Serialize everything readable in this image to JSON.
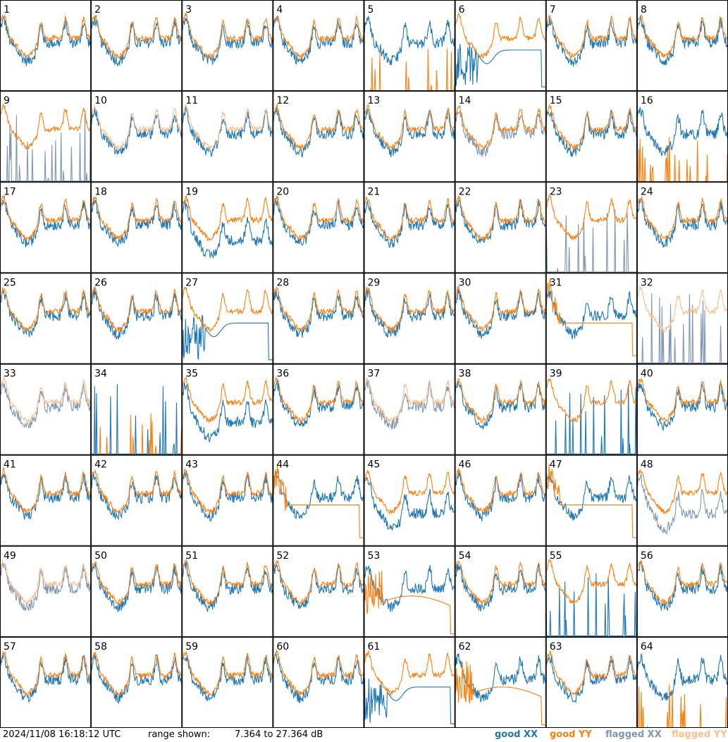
{
  "chart_data": {
    "type": "line",
    "grid": {
      "rows": 8,
      "cols": 8
    },
    "panels": [
      1,
      2,
      3,
      4,
      5,
      6,
      7,
      8,
      9,
      10,
      11,
      12,
      13,
      14,
      15,
      16,
      17,
      18,
      19,
      20,
      21,
      22,
      23,
      24,
      25,
      26,
      27,
      28,
      29,
      30,
      31,
      32,
      33,
      34,
      35,
      36,
      37,
      38,
      39,
      40,
      41,
      42,
      43,
      44,
      45,
      46,
      47,
      48,
      49,
      50,
      51,
      52,
      53,
      54,
      55,
      56,
      57,
      58,
      59,
      60,
      61,
      62,
      63,
      64
    ],
    "panel_labels": [
      "1",
      "2",
      "3",
      "4",
      "5",
      "6",
      "7",
      "8",
      "9",
      "10",
      "11",
      "12",
      "13",
      "14",
      "15",
      "16",
      "17",
      "18",
      "19",
      "20",
      "21",
      "22",
      "23",
      "24",
      "25",
      "26",
      "27",
      "28",
      "29",
      "30",
      "31",
      "32",
      "33",
      "34",
      "35",
      "36",
      "37",
      "38",
      "39",
      "40",
      "41",
      "42",
      "43",
      "44",
      "45",
      "46",
      "47",
      "48",
      "49",
      "50",
      "51",
      "52",
      "53",
      "54",
      "55",
      "56",
      "57",
      "58",
      "59",
      "60",
      "61",
      "62",
      "63",
      "64"
    ],
    "ylim": [
      7.364,
      27.364
    ],
    "y_unit": "dB",
    "series_styles": [
      {
        "name": "good XX",
        "color": "#1f77b4"
      },
      {
        "name": "good YY",
        "color": "#ff7f0e"
      },
      {
        "name": "flagged XX",
        "color": "#7f97b2"
      },
      {
        "name": "flagged YY",
        "color": "#fcbf8c"
      }
    ],
    "panel_traces": {
      "xx": [
        "good",
        "good",
        "good",
        "good",
        "good",
        "good",
        "good",
        "good",
        "flagged",
        "good",
        "good",
        "good",
        "good",
        "flagged",
        "good",
        "good",
        "good",
        "good",
        "good",
        "good",
        "good",
        "good",
        "flagged",
        "good",
        "good",
        "good",
        "good",
        "good",
        "good",
        "good",
        "good",
        "flagged",
        "flagged",
        "good",
        "good",
        "good",
        "flagged",
        "good",
        "good",
        "good",
        "good",
        "good",
        "good",
        "good",
        "good",
        "good",
        "good",
        "flagged",
        "flagged",
        "good",
        "good",
        "good",
        "good",
        "good",
        "good",
        "good",
        "good",
        "good",
        "good",
        "good",
        "good",
        "good",
        "good",
        "good"
      ],
      "yy": [
        "good",
        "good",
        "good",
        "good",
        "spikes",
        "good",
        "good",
        "good",
        "good",
        "flagged",
        "flagged",
        "good",
        "good",
        "good",
        "good",
        "spikes",
        "good",
        "good",
        "good",
        "good",
        "good",
        "good",
        "good",
        "good",
        "good",
        "good",
        "good",
        "good",
        "good",
        "good",
        "good",
        "flagged",
        "flagged",
        "spikes",
        "good",
        "good",
        "flagged",
        "good",
        "good",
        "good",
        "good",
        "good",
        "good",
        "good",
        "good",
        "good",
        "good",
        "good",
        "flagged",
        "good",
        "good",
        "good",
        "good",
        "good",
        "good",
        "good",
        "good",
        "good",
        "good",
        "good",
        "good",
        "good",
        "good",
        "spikes"
      ],
      "shape": [
        "n",
        "n",
        "n",
        "n",
        "xhi",
        "xdip",
        "n",
        "n",
        "spk",
        "n",
        "n",
        "n",
        "n",
        "n",
        "n",
        "n",
        "n",
        "n",
        "xlow",
        "n",
        "n",
        "n",
        "spk",
        "n",
        "n",
        "n",
        "xdip",
        "n",
        "n",
        "n",
        "ylow",
        "spk",
        "n",
        "spk",
        "xlow",
        "n",
        "n",
        "n",
        "spk",
        "n",
        "n",
        "n",
        "n",
        "ylow",
        "xlow",
        "n",
        "ylow",
        "xlow",
        "n",
        "n",
        "n",
        "n",
        "ydip",
        "n",
        "spk",
        "n",
        "n",
        "n",
        "n",
        "n",
        "xdip",
        "ydip",
        "n",
        "n"
      ]
    }
  },
  "footer": {
    "timestamp": "2024/11/08 16:18:12 UTC",
    "range_label": "range shown:",
    "range_value": "7.364 to 27.364 dB"
  },
  "legend": [
    {
      "label": "good XX",
      "color": "#1f77b4"
    },
    {
      "label": "good YY",
      "color": "#ff7f0e"
    },
    {
      "label": "flagged XX",
      "color": "#7f97b2"
    },
    {
      "label": "flagged YY",
      "color": "#fcbf8c"
    }
  ]
}
